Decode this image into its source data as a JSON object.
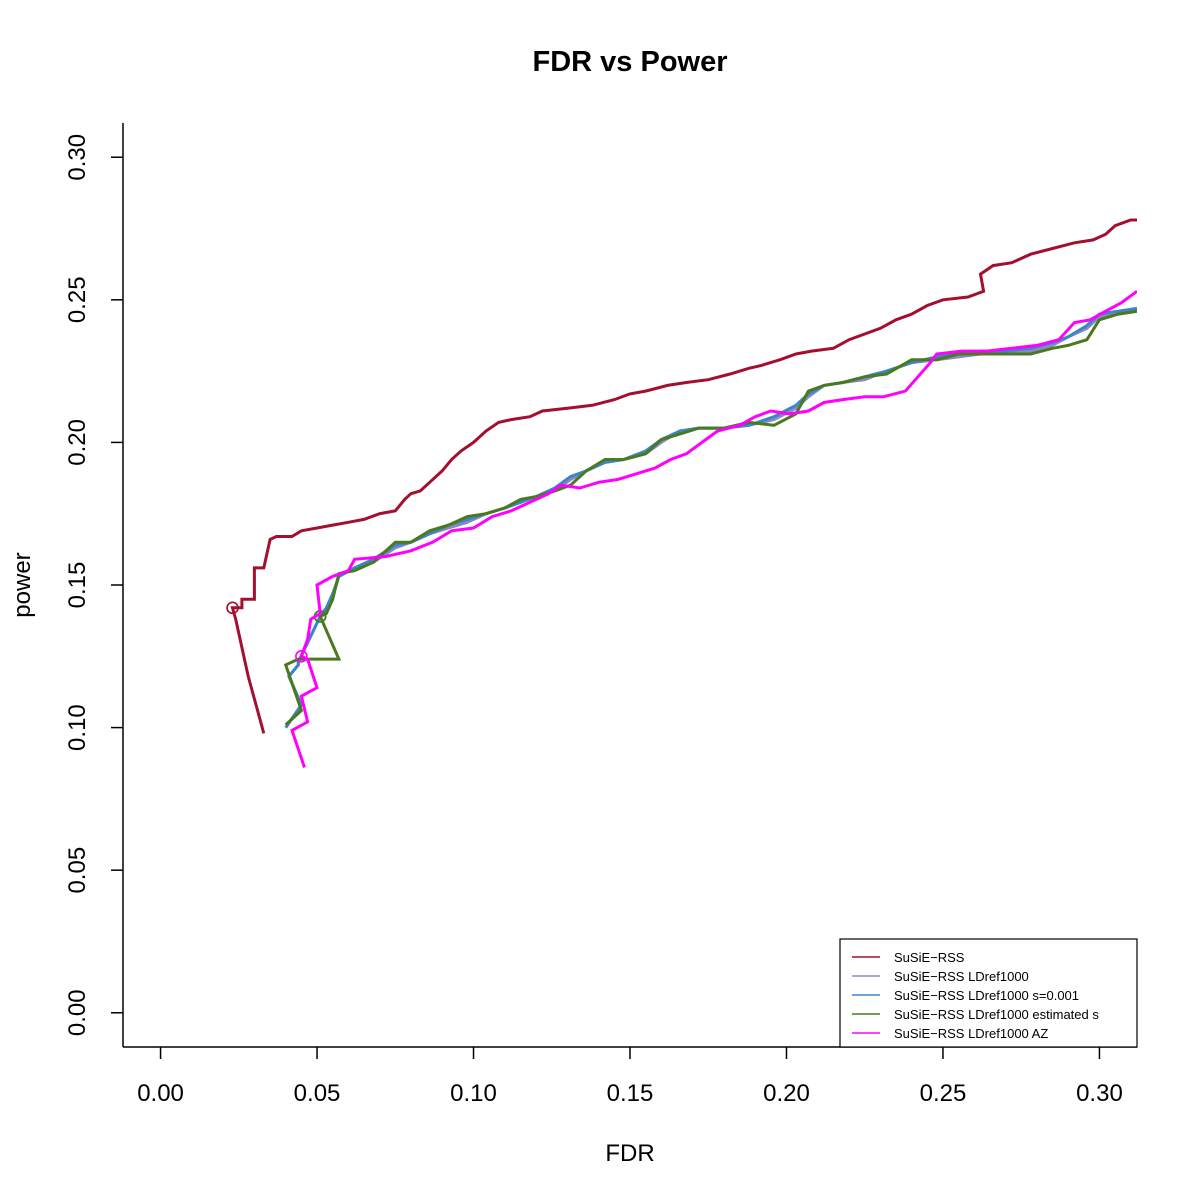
{
  "chart_data": {
    "type": "line",
    "title": "FDR vs Power",
    "xlabel": "FDR",
    "ylabel": "power",
    "xlim": [
      -0.012,
      0.312
    ],
    "ylim": [
      -0.012,
      0.312
    ],
    "xticks": [
      0.0,
      0.05,
      0.1,
      0.15,
      0.2,
      0.25,
      0.3
    ],
    "xtick_labels": [
      "0.00",
      "0.05",
      "0.10",
      "0.15",
      "0.20",
      "0.25",
      "0.30"
    ],
    "yticks": [
      0.0,
      0.05,
      0.1,
      0.15,
      0.2,
      0.25,
      0.3
    ],
    "ytick_labels": [
      "0.00",
      "0.05",
      "0.10",
      "0.15",
      "0.20",
      "0.25",
      "0.30"
    ],
    "grid": false,
    "legend_position": "bottom-right",
    "series": [
      {
        "name": "SuSiE−RSS",
        "color": "#A50F2E",
        "marker": [
          0.023,
          0.142
        ],
        "points": [
          [
            0.033,
            0.098
          ],
          [
            0.028,
            0.118
          ],
          [
            0.024,
            0.138
          ],
          [
            0.023,
            0.142
          ],
          [
            0.026,
            0.142
          ],
          [
            0.026,
            0.145
          ],
          [
            0.03,
            0.145
          ],
          [
            0.03,
            0.156
          ],
          [
            0.033,
            0.156
          ],
          [
            0.035,
            0.166
          ],
          [
            0.037,
            0.167
          ],
          [
            0.042,
            0.167
          ],
          [
            0.045,
            0.169
          ],
          [
            0.05,
            0.17
          ],
          [
            0.055,
            0.171
          ],
          [
            0.06,
            0.172
          ],
          [
            0.065,
            0.173
          ],
          [
            0.07,
            0.175
          ],
          [
            0.075,
            0.176
          ],
          [
            0.078,
            0.18
          ],
          [
            0.08,
            0.182
          ],
          [
            0.083,
            0.183
          ],
          [
            0.086,
            0.186
          ],
          [
            0.09,
            0.19
          ],
          [
            0.093,
            0.194
          ],
          [
            0.096,
            0.197
          ],
          [
            0.1,
            0.2
          ],
          [
            0.104,
            0.204
          ],
          [
            0.108,
            0.207
          ],
          [
            0.112,
            0.208
          ],
          [
            0.118,
            0.209
          ],
          [
            0.122,
            0.211
          ],
          [
            0.13,
            0.212
          ],
          [
            0.138,
            0.213
          ],
          [
            0.145,
            0.215
          ],
          [
            0.15,
            0.217
          ],
          [
            0.155,
            0.218
          ],
          [
            0.162,
            0.22
          ],
          [
            0.168,
            0.221
          ],
          [
            0.175,
            0.222
          ],
          [
            0.182,
            0.224
          ],
          [
            0.188,
            0.226
          ],
          [
            0.192,
            0.227
          ],
          [
            0.198,
            0.229
          ],
          [
            0.203,
            0.231
          ],
          [
            0.208,
            0.232
          ],
          [
            0.215,
            0.233
          ],
          [
            0.22,
            0.236
          ],
          [
            0.225,
            0.238
          ],
          [
            0.23,
            0.24
          ],
          [
            0.235,
            0.243
          ],
          [
            0.24,
            0.245
          ],
          [
            0.245,
            0.248
          ],
          [
            0.25,
            0.25
          ],
          [
            0.258,
            0.251
          ],
          [
            0.263,
            0.253
          ],
          [
            0.262,
            0.259
          ],
          [
            0.266,
            0.262
          ],
          [
            0.272,
            0.263
          ],
          [
            0.278,
            0.266
          ],
          [
            0.285,
            0.268
          ],
          [
            0.292,
            0.27
          ],
          [
            0.298,
            0.271
          ],
          [
            0.302,
            0.273
          ],
          [
            0.305,
            0.276
          ],
          [
            0.31,
            0.278
          ],
          [
            0.312,
            0.278
          ]
        ]
      },
      {
        "name": "SuSiE−RSS LDref1000",
        "color": "#8B88C4",
        "marker": [
          0.051,
          0.139
        ],
        "points": [
          [
            0.04,
            0.1
          ],
          [
            0.045,
            0.108
          ],
          [
            0.041,
            0.118
          ],
          [
            0.044,
            0.122
          ],
          [
            0.044,
            0.123
          ],
          [
            0.051,
            0.139
          ],
          [
            0.053,
            0.141
          ],
          [
            0.055,
            0.146
          ],
          [
            0.057,
            0.153
          ],
          [
            0.062,
            0.156
          ],
          [
            0.068,
            0.158
          ],
          [
            0.075,
            0.163
          ],
          [
            0.08,
            0.165
          ],
          [
            0.086,
            0.168
          ],
          [
            0.092,
            0.17
          ],
          [
            0.098,
            0.172
          ],
          [
            0.104,
            0.175
          ],
          [
            0.11,
            0.177
          ],
          [
            0.115,
            0.179
          ],
          [
            0.12,
            0.181
          ],
          [
            0.126,
            0.183
          ],
          [
            0.131,
            0.187
          ],
          [
            0.136,
            0.19
          ],
          [
            0.142,
            0.193
          ],
          [
            0.148,
            0.194
          ],
          [
            0.155,
            0.196
          ],
          [
            0.16,
            0.2
          ],
          [
            0.166,
            0.204
          ],
          [
            0.172,
            0.205
          ],
          [
            0.18,
            0.205
          ],
          [
            0.188,
            0.206
          ],
          [
            0.196,
            0.208
          ],
          [
            0.203,
            0.212
          ],
          [
            0.207,
            0.216
          ],
          [
            0.212,
            0.22
          ],
          [
            0.218,
            0.221
          ],
          [
            0.225,
            0.222
          ],
          [
            0.232,
            0.225
          ],
          [
            0.24,
            0.228
          ],
          [
            0.248,
            0.229
          ],
          [
            0.255,
            0.23
          ],
          [
            0.262,
            0.231
          ],
          [
            0.27,
            0.232
          ],
          [
            0.278,
            0.232
          ],
          [
            0.285,
            0.234
          ],
          [
            0.29,
            0.237
          ],
          [
            0.296,
            0.24
          ],
          [
            0.3,
            0.244
          ],
          [
            0.306,
            0.245
          ],
          [
            0.312,
            0.246
          ]
        ]
      },
      {
        "name": "SuSiE−RSS LDref1000 s=0.001",
        "color": "#3A86C8",
        "marker": [
          0.051,
          0.139
        ],
        "points": [
          [
            0.04,
            0.1
          ],
          [
            0.045,
            0.108
          ],
          [
            0.041,
            0.118
          ],
          [
            0.044,
            0.122
          ],
          [
            0.044,
            0.123
          ],
          [
            0.051,
            0.139
          ],
          [
            0.053,
            0.142
          ],
          [
            0.055,
            0.147
          ],
          [
            0.057,
            0.153
          ],
          [
            0.062,
            0.156
          ],
          [
            0.068,
            0.159
          ],
          [
            0.075,
            0.164
          ],
          [
            0.08,
            0.165
          ],
          [
            0.086,
            0.168
          ],
          [
            0.092,
            0.171
          ],
          [
            0.098,
            0.173
          ],
          [
            0.104,
            0.175
          ],
          [
            0.11,
            0.177
          ],
          [
            0.115,
            0.179
          ],
          [
            0.12,
            0.181
          ],
          [
            0.126,
            0.184
          ],
          [
            0.131,
            0.188
          ],
          [
            0.136,
            0.19
          ],
          [
            0.142,
            0.193
          ],
          [
            0.148,
            0.194
          ],
          [
            0.155,
            0.197
          ],
          [
            0.16,
            0.201
          ],
          [
            0.166,
            0.204
          ],
          [
            0.172,
            0.205
          ],
          [
            0.18,
            0.205
          ],
          [
            0.188,
            0.206
          ],
          [
            0.196,
            0.209
          ],
          [
            0.203,
            0.213
          ],
          [
            0.207,
            0.217
          ],
          [
            0.212,
            0.22
          ],
          [
            0.218,
            0.221
          ],
          [
            0.225,
            0.223
          ],
          [
            0.232,
            0.225
          ],
          [
            0.24,
            0.228
          ],
          [
            0.248,
            0.23
          ],
          [
            0.255,
            0.231
          ],
          [
            0.262,
            0.232
          ],
          [
            0.27,
            0.232
          ],
          [
            0.278,
            0.233
          ],
          [
            0.285,
            0.235
          ],
          [
            0.29,
            0.237
          ],
          [
            0.296,
            0.241
          ],
          [
            0.3,
            0.245
          ],
          [
            0.306,
            0.246
          ],
          [
            0.312,
            0.247
          ]
        ]
      },
      {
        "name": "SuSiE−RSS LDref1000 estimated s",
        "color": "#4A7A1E",
        "marker": [
          0.051,
          0.139
        ],
        "points": [
          [
            0.04,
            0.101
          ],
          [
            0.045,
            0.106
          ],
          [
            0.04,
            0.122
          ],
          [
            0.044,
            0.124
          ],
          [
            0.057,
            0.124
          ],
          [
            0.051,
            0.139
          ],
          [
            0.053,
            0.14
          ],
          [
            0.055,
            0.145
          ],
          [
            0.057,
            0.154
          ],
          [
            0.062,
            0.155
          ],
          [
            0.068,
            0.158
          ],
          [
            0.075,
            0.165
          ],
          [
            0.08,
            0.165
          ],
          [
            0.086,
            0.169
          ],
          [
            0.092,
            0.171
          ],
          [
            0.098,
            0.174
          ],
          [
            0.104,
            0.175
          ],
          [
            0.11,
            0.177
          ],
          [
            0.115,
            0.18
          ],
          [
            0.12,
            0.181
          ],
          [
            0.126,
            0.183
          ],
          [
            0.131,
            0.185
          ],
          [
            0.136,
            0.19
          ],
          [
            0.142,
            0.194
          ],
          [
            0.148,
            0.194
          ],
          [
            0.155,
            0.196
          ],
          [
            0.16,
            0.201
          ],
          [
            0.166,
            0.203
          ],
          [
            0.172,
            0.205
          ],
          [
            0.18,
            0.205
          ],
          [
            0.188,
            0.207
          ],
          [
            0.196,
            0.206
          ],
          [
            0.203,
            0.21
          ],
          [
            0.207,
            0.218
          ],
          [
            0.212,
            0.22
          ],
          [
            0.218,
            0.221
          ],
          [
            0.225,
            0.223
          ],
          [
            0.232,
            0.224
          ],
          [
            0.24,
            0.229
          ],
          [
            0.248,
            0.229
          ],
          [
            0.255,
            0.231
          ],
          [
            0.262,
            0.231
          ],
          [
            0.27,
            0.231
          ],
          [
            0.278,
            0.231
          ],
          [
            0.285,
            0.233
          ],
          [
            0.29,
            0.234
          ],
          [
            0.296,
            0.236
          ],
          [
            0.3,
            0.243
          ],
          [
            0.306,
            0.245
          ],
          [
            0.312,
            0.246
          ]
        ]
      },
      {
        "name": "SuSiE−RSS LDref1000 AZ",
        "color": "#FF00FF",
        "marker": [
          0.045,
          0.125
        ],
        "points": [
          [
            0.046,
            0.086
          ],
          [
            0.042,
            0.099
          ],
          [
            0.047,
            0.102
          ],
          [
            0.045,
            0.111
          ],
          [
            0.05,
            0.114
          ],
          [
            0.047,
            0.124
          ],
          [
            0.045,
            0.125
          ],
          [
            0.047,
            0.131
          ],
          [
            0.048,
            0.138
          ],
          [
            0.051,
            0.14
          ],
          [
            0.05,
            0.15
          ],
          [
            0.055,
            0.153
          ],
          [
            0.06,
            0.155
          ],
          [
            0.062,
            0.159
          ],
          [
            0.072,
            0.16
          ],
          [
            0.08,
            0.162
          ],
          [
            0.087,
            0.165
          ],
          [
            0.093,
            0.169
          ],
          [
            0.1,
            0.17
          ],
          [
            0.106,
            0.174
          ],
          [
            0.112,
            0.176
          ],
          [
            0.118,
            0.179
          ],
          [
            0.124,
            0.182
          ],
          [
            0.128,
            0.185
          ],
          [
            0.134,
            0.184
          ],
          [
            0.14,
            0.186
          ],
          [
            0.146,
            0.187
          ],
          [
            0.152,
            0.189
          ],
          [
            0.158,
            0.191
          ],
          [
            0.163,
            0.194
          ],
          [
            0.168,
            0.196
          ],
          [
            0.173,
            0.2
          ],
          [
            0.178,
            0.204
          ],
          [
            0.185,
            0.206
          ],
          [
            0.19,
            0.209
          ],
          [
            0.195,
            0.211
          ],
          [
            0.201,
            0.21
          ],
          [
            0.207,
            0.211
          ],
          [
            0.212,
            0.214
          ],
          [
            0.218,
            0.215
          ],
          [
            0.225,
            0.216
          ],
          [
            0.231,
            0.216
          ],
          [
            0.238,
            0.218
          ],
          [
            0.242,
            0.223
          ],
          [
            0.246,
            0.228
          ],
          [
            0.248,
            0.231
          ],
          [
            0.256,
            0.232
          ],
          [
            0.264,
            0.232
          ],
          [
            0.272,
            0.233
          ],
          [
            0.28,
            0.234
          ],
          [
            0.287,
            0.236
          ],
          [
            0.292,
            0.242
          ],
          [
            0.297,
            0.243
          ],
          [
            0.302,
            0.246
          ],
          [
            0.307,
            0.249
          ],
          [
            0.312,
            0.253
          ]
        ]
      }
    ]
  }
}
